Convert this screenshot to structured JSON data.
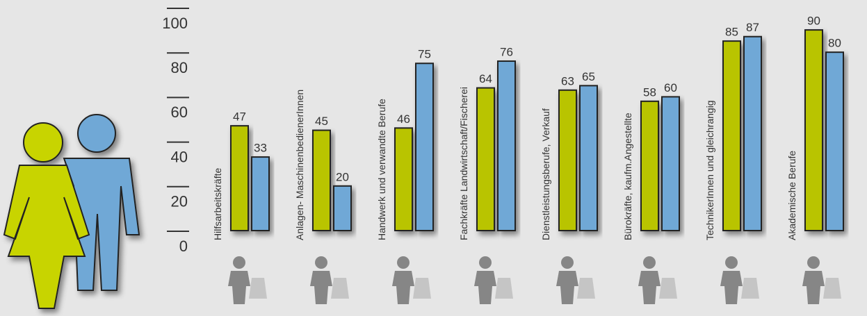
{
  "chart_data": {
    "type": "bar",
    "categories": [
      "Hilfsarbeitskräfte",
      "Anlagen- MaschinenbedienerInnen",
      "Handwerk und verwandte Berufe",
      "Fachkräfte Landwirtschaft/Fischerei",
      "Dienstleistungsberufe, Verkauf",
      "Bürokräfte, kaufm.Angestellte",
      "TechnikerInnen und gleichrangig",
      "Akademische Berufe"
    ],
    "series": [
      {
        "color": "#b9c400",
        "values": [
          47,
          45,
          46,
          64,
          63,
          58,
          85,
          90
        ]
      },
      {
        "color": "#6fa8d6",
        "values": [
          33,
          20,
          75,
          76,
          65,
          60,
          87,
          80
        ]
      }
    ],
    "ylim": [
      0,
      100
    ],
    "yticks": [
      0,
      20,
      40,
      60,
      80,
      100
    ]
  }
}
